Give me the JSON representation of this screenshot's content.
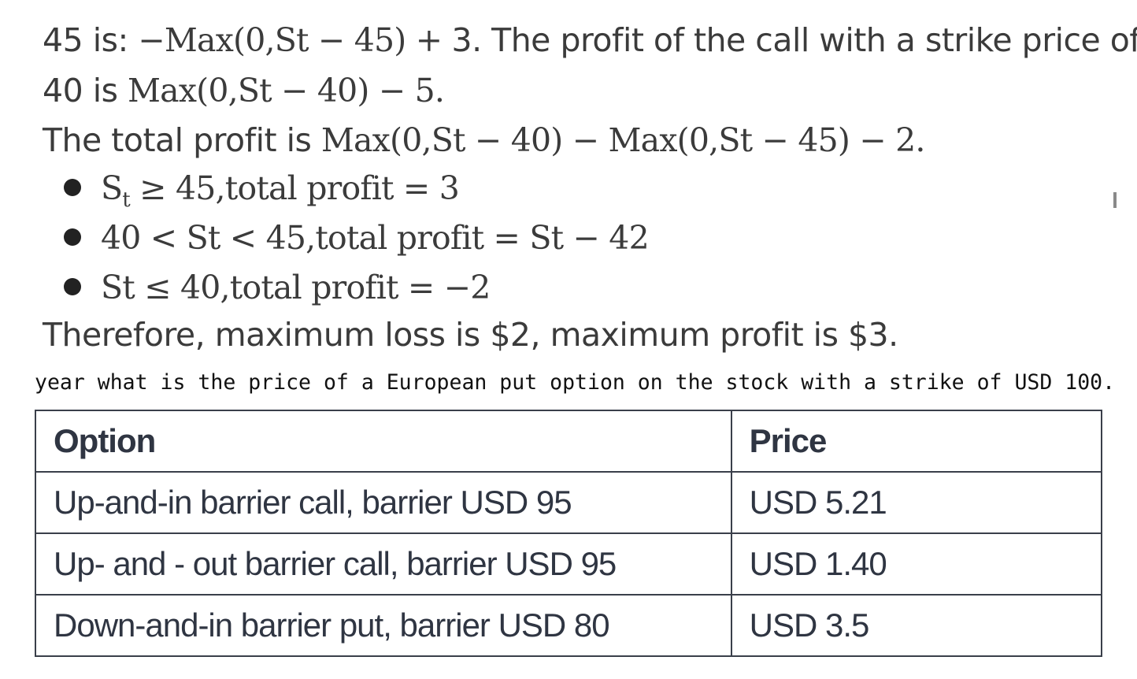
{
  "text": {
    "line1_a": "45 is: ",
    "line1_math": "−Max(0,St − 45) + ",
    "line1_b": " 3. The profit of the call with a strike price of",
    "line2_a": "40 is ",
    "line2_math": "Max(0,St − 40) − 5.",
    "line3_a": "The total profit is ",
    "line3_math": "Max(0,St − 40) − Max(0,St − 45) − 2.",
    "bullets": [
      {
        "s": "S",
        "sub": "t",
        "rest": " ≥ 45,total profit = 3"
      },
      {
        "s": "40 < St < 45,total profit = St − 42"
      },
      {
        "s": "St ≤ 40,total profit = −2"
      }
    ],
    "conclusion": "Therefore, maximum loss is $2, maximum profit is $3.",
    "question": "year what is the price of a European put option on the stock with a strike of USD 100."
  },
  "table": {
    "headers": [
      "Option",
      "Price"
    ],
    "rows": [
      [
        "Up-and-in barrier call, barrier USD 95",
        "USD 5.21"
      ],
      [
        "Up- and - out barrier call, barrier USD 95",
        "USD 1.40"
      ],
      [
        "Down-and-in barrier put, barrier USD 80",
        "USD 3.5"
      ]
    ]
  }
}
